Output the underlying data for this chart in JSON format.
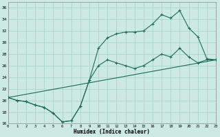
{
  "xlabel": "Humidex (Indice chaleur)",
  "xlim": [
    0,
    23
  ],
  "ylim": [
    16,
    37
  ],
  "xticks": [
    0,
    1,
    2,
    3,
    4,
    5,
    6,
    7,
    8,
    9,
    10,
    11,
    12,
    13,
    14,
    15,
    16,
    17,
    18,
    19,
    20,
    21,
    22,
    23
  ],
  "yticks": [
    16,
    18,
    20,
    22,
    24,
    26,
    28,
    30,
    32,
    34,
    36
  ],
  "bg_color": "#cce9e4",
  "grid_color": "#aad4cc",
  "line_color": "#1a6b5a",
  "line1_x": [
    0,
    1,
    2,
    3,
    4,
    5,
    6,
    7,
    8,
    9,
    10,
    11,
    12,
    13,
    14,
    15,
    16,
    17,
    18,
    19,
    20,
    21,
    22,
    23
  ],
  "line1_y": [
    20.5,
    20.0,
    19.8,
    19.2,
    18.8,
    17.8,
    16.3,
    16.5,
    19.0,
    23.5,
    29.0,
    30.8,
    31.5,
    31.8,
    31.8,
    32.0,
    33.2,
    34.8,
    34.2,
    35.5,
    32.5,
    31.0,
    27.2,
    27.0
  ],
  "line2_x": [
    0,
    1,
    2,
    3,
    4,
    5,
    6,
    7,
    8,
    9,
    10,
    11,
    12,
    13,
    14,
    15,
    16,
    17,
    18,
    19,
    20,
    21,
    22,
    23
  ],
  "line2_y": [
    20.5,
    20.0,
    19.8,
    19.2,
    18.8,
    17.8,
    16.3,
    16.5,
    19.0,
    23.5,
    26.0,
    27.0,
    26.5,
    26.0,
    25.5,
    26.0,
    27.0,
    28.0,
    27.5,
    29.0,
    27.5,
    26.5,
    27.0,
    27.0
  ],
  "line3_x": [
    0,
    23
  ],
  "line3_y": [
    20.5,
    27.0
  ]
}
